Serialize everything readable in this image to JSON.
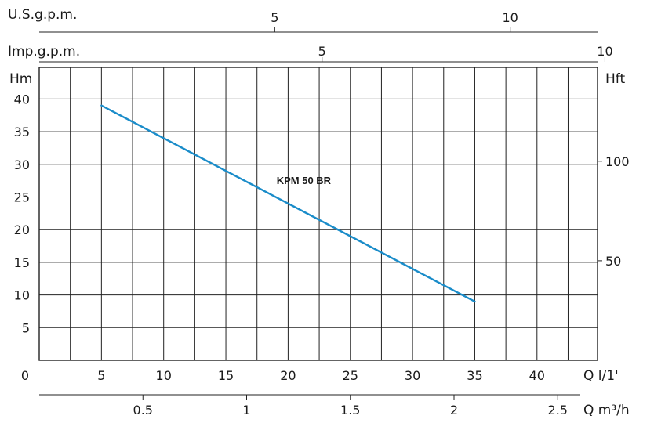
{
  "chart_data": {
    "type": "line",
    "series": [
      {
        "name": "KPM 50 BR",
        "x": [
          5,
          35
        ],
        "y": [
          39,
          9
        ],
        "color": "#1a8cc9"
      }
    ],
    "primary_x": {
      "label": "Q l/1'",
      "ticks": [
        0,
        5,
        10,
        15,
        20,
        25,
        30,
        35,
        40
      ],
      "range": [
        0,
        43
      ],
      "grid_step": 2.5
    },
    "secondary_x": {
      "label": "Q m³/h",
      "ticks": [
        0.5,
        1,
        1.5,
        2,
        2.5
      ]
    },
    "top_axes": [
      {
        "label": "U.S.g.p.m.",
        "ticks": [
          5,
          10
        ]
      },
      {
        "label": "Imp.g.p.m.",
        "ticks": [
          5,
          10
        ]
      }
    ],
    "y_left": {
      "label": "Hm",
      "ticks": [
        5,
        10,
        15,
        20,
        25,
        30,
        35,
        40
      ],
      "range": [
        0,
        45
      ]
    },
    "y_right": {
      "label": "Hft",
      "ticks": [
        50,
        100
      ]
    },
    "grid": true
  }
}
